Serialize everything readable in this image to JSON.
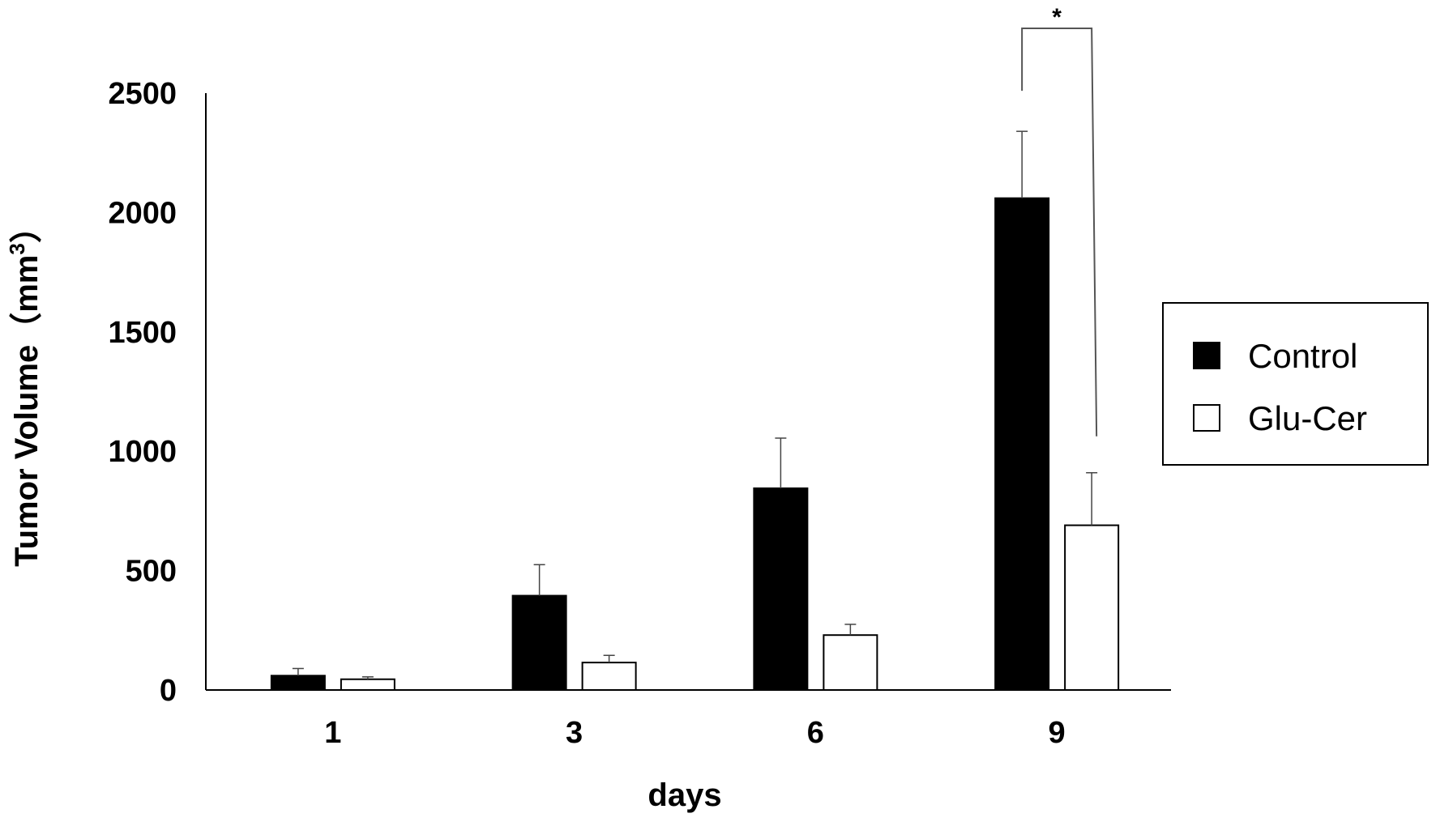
{
  "chart_data": {
    "type": "bar",
    "title": "",
    "xlabel": "days",
    "ylabel": "Tumor Volume（mm",
    "ylabel_superscript": "3",
    "ylabel_close": "）",
    "categories": [
      "1",
      "3",
      "6",
      "9"
    ],
    "ylim": [
      0,
      2500
    ],
    "yticks": [
      "0",
      "500",
      "1000",
      "1500",
      "2000",
      "2500"
    ],
    "grid": false,
    "legend_position": "right",
    "series": [
      {
        "name": "Control",
        "color": "#000000",
        "values": [
          60,
          395,
          845,
          2060
        ],
        "errors": [
          30,
          130,
          210,
          280
        ]
      },
      {
        "name": "Glu-Cer",
        "color": "#ffffff",
        "values": [
          45,
          115,
          230,
          690
        ],
        "errors": [
          10,
          30,
          45,
          220
        ]
      }
    ],
    "annotations": [
      {
        "text": "*",
        "category": "9"
      }
    ]
  }
}
